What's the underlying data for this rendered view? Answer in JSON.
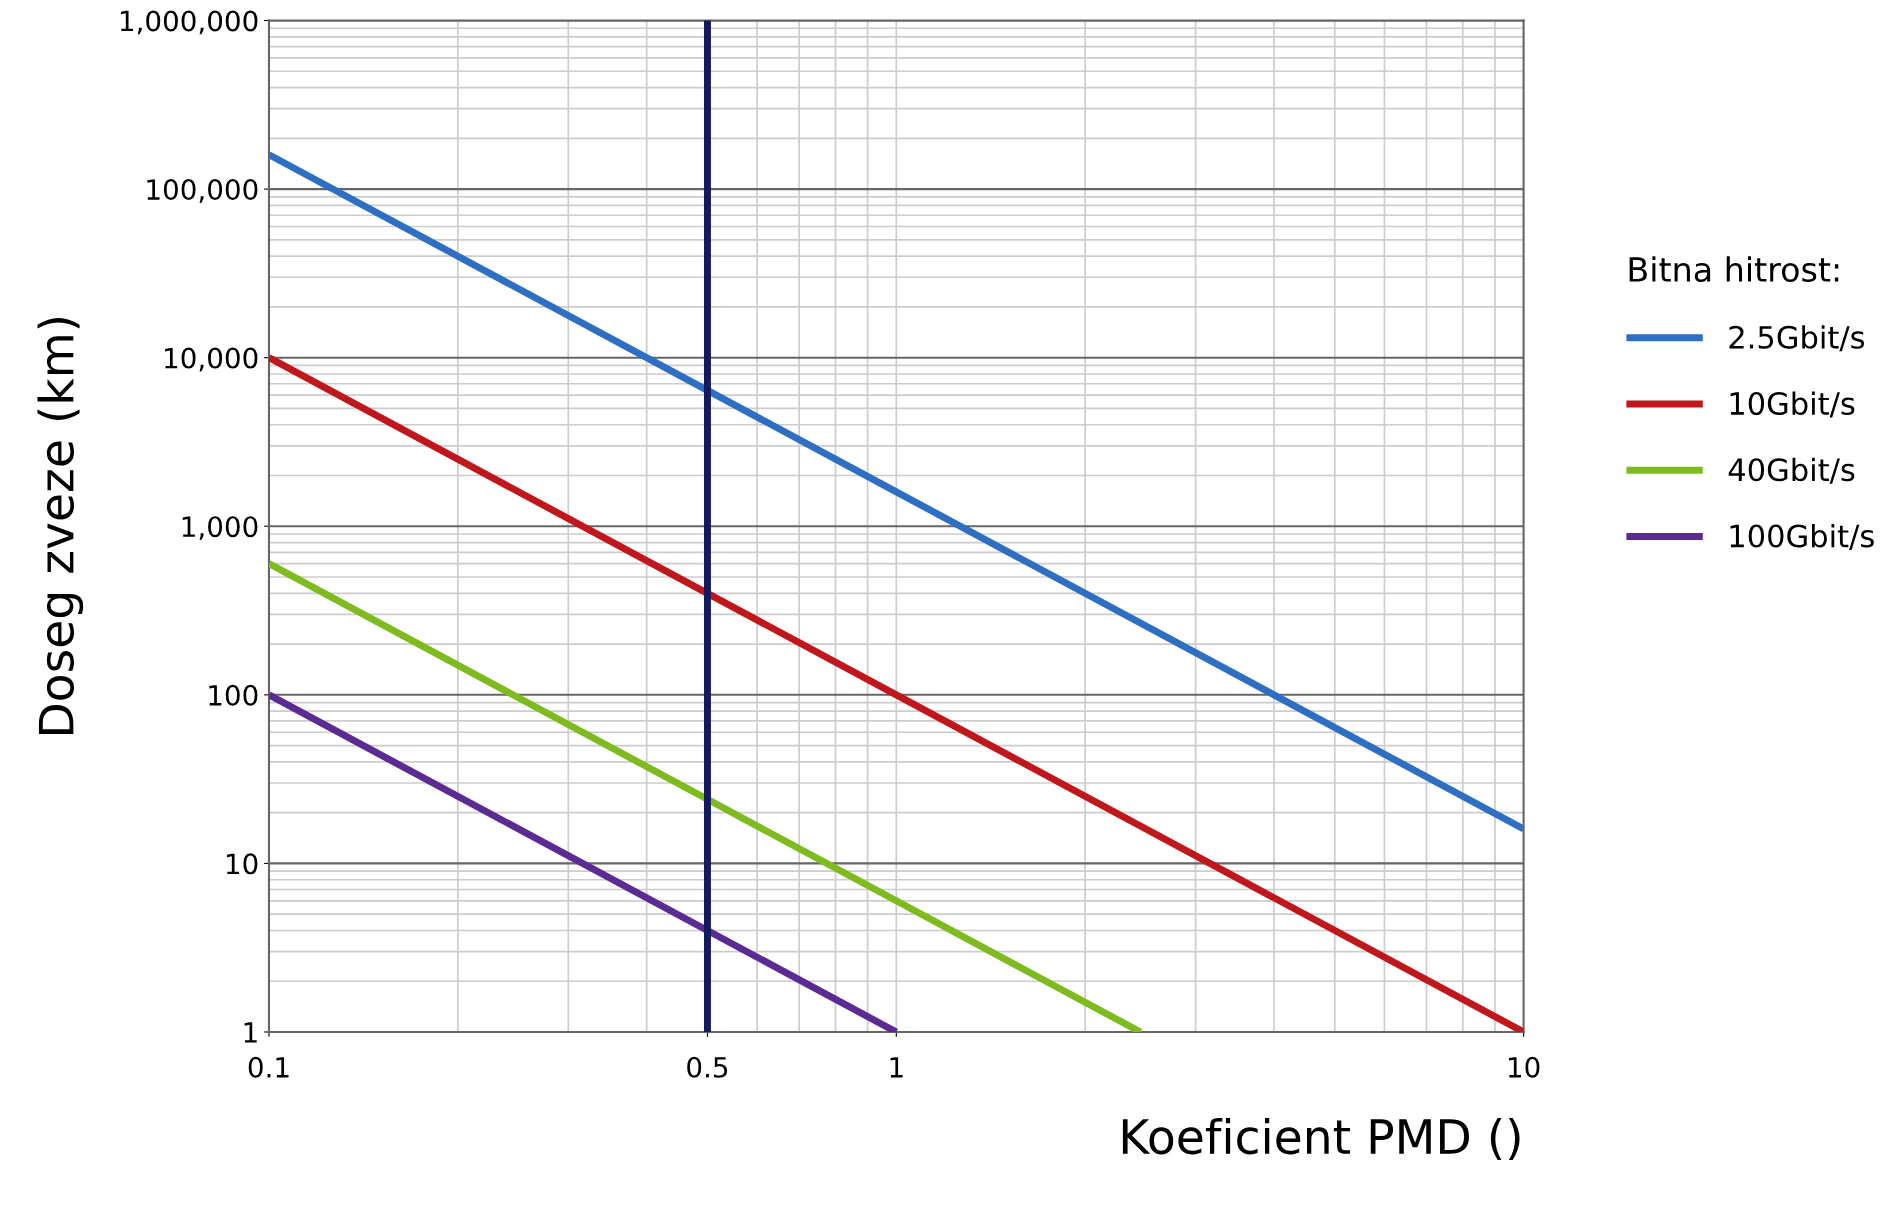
{
  "chart_data": {
    "type": "line",
    "xlabel": "Koeficient PMD ()",
    "ylabel": "Doseg zveze (km)",
    "legend_title": "Bitna hitrost:",
    "log": "xy",
    "grid": true,
    "legend": "right",
    "line_style": "solid",
    "xlim": [
      0.1,
      10
    ],
    "ylim": [
      1,
      1000000
    ],
    "xticks": [
      0.1,
      0.5,
      1,
      10
    ],
    "yticks": [
      1,
      10,
      100,
      {
        "value": 1000,
        "label": "1,000"
      },
      {
        "value": 10000,
        "label": "10,000"
      },
      {
        "value": 100000,
        "label": "100,000"
      },
      {
        "value": 1000000,
        "label": "1,000,000"
      }
    ],
    "series": [
      {
        "name": "2.5Gbit/s",
        "color": "#2e6fc4",
        "x": [
          0.1,
          0.5,
          1,
          10
        ],
        "values": [
          160000,
          6400,
          1600,
          16
        ]
      },
      {
        "name": "10Gbit/s",
        "color": "#c0171c",
        "x": [
          0.1,
          0.5,
          1,
          10
        ],
        "values": [
          10000,
          400,
          100,
          1
        ]
      },
      {
        "name": "40Gbit/s",
        "color": "#7dbb1f",
        "x": [
          0.1,
          0.5,
          1,
          2.45
        ],
        "values": [
          600,
          24,
          6,
          1
        ]
      },
      {
        "name": "100Gbit/s",
        "color": "#5b2a93",
        "x": [
          0.1,
          0.5,
          1
        ],
        "values": [
          100,
          4,
          1
        ]
      }
    ],
    "ref_lines": [
      {
        "axis": "x",
        "value": 0.5,
        "label": null,
        "color": "#141a5e",
        "line_style": "solid"
      }
    ]
  }
}
